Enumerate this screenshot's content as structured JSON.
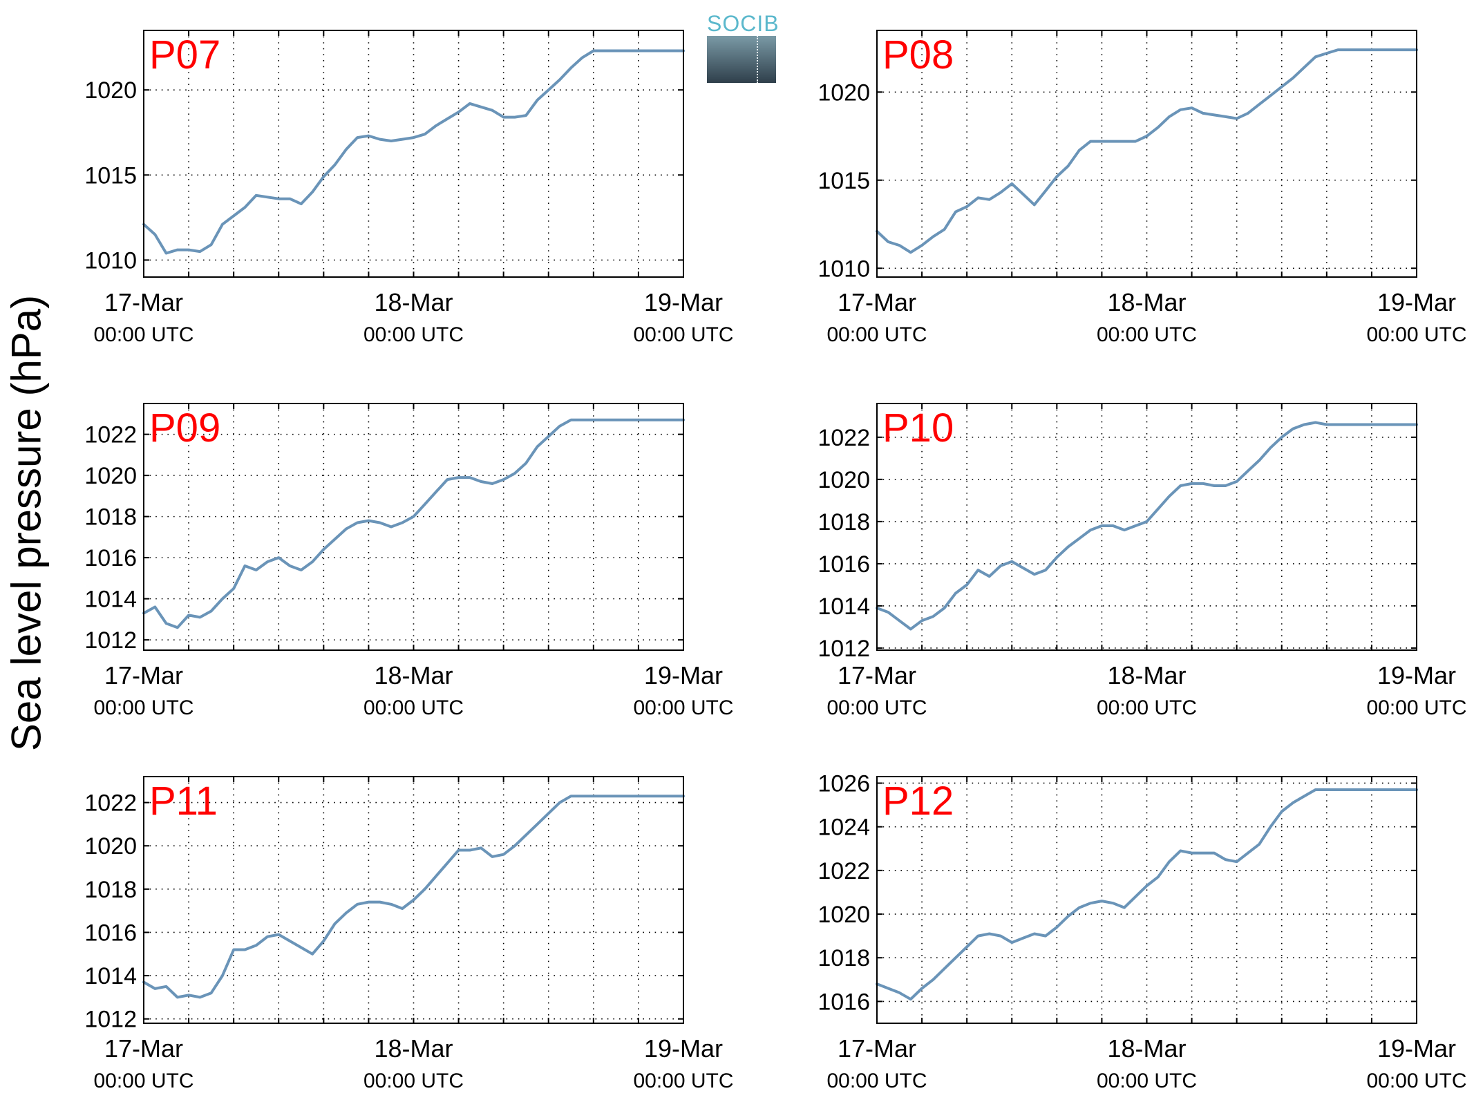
{
  "figure": {
    "ylabel": "Sea level pressure (hPa)",
    "logo_text": "SOCIB",
    "line_color": "#6a94b8",
    "label_color": "#ff0000"
  },
  "chart_data": [
    {
      "type": "line",
      "title": "P07",
      "x_ticks": [
        {
          "date": "17-Mar",
          "time": "00:00 UTC"
        },
        {
          "date": "18-Mar",
          "time": "00:00 UTC"
        },
        {
          "date": "19-Mar",
          "time": "00:00 UTC"
        }
      ],
      "xlim_hours": [
        0,
        48
      ],
      "ylim": [
        1009.0,
        1023.5
      ],
      "yticks": [
        1010,
        1015,
        1020
      ],
      "series": [
        {
          "x": [
            0,
            1,
            2,
            3,
            4,
            5,
            6,
            7,
            8,
            9,
            10,
            11,
            12,
            13,
            14,
            15,
            16,
            17,
            18,
            19,
            20,
            21,
            22,
            23,
            24,
            25,
            26,
            27,
            28,
            29,
            30,
            31,
            32,
            33,
            34,
            35,
            36,
            37,
            38,
            39,
            40,
            41,
            42,
            43,
            44,
            45,
            46,
            47,
            48
          ],
          "y": [
            1012.1,
            1011.5,
            1010.4,
            1010.6,
            1010.6,
            1010.5,
            1010.9,
            1012.1,
            1012.6,
            1013.1,
            1013.8,
            1013.7,
            1013.6,
            1013.6,
            1013.3,
            1014.0,
            1014.9,
            1015.6,
            1016.5,
            1017.2,
            1017.3,
            1017.1,
            1017.0,
            1017.1,
            1017.2,
            1017.4,
            1017.9,
            1018.3,
            1018.7,
            1019.2,
            1019.0,
            1018.8,
            1018.4,
            1018.4,
            1018.5,
            1019.4,
            1020.0,
            1020.6,
            1021.3,
            1021.9,
            1022.3,
            1022.3,
            1022.3,
            1022.3,
            1022.3,
            1022.3,
            1022.3,
            1022.3,
            1022.3
          ]
        }
      ]
    },
    {
      "type": "line",
      "title": "P08",
      "x_ticks": [
        {
          "date": "17-Mar",
          "time": "00:00 UTC"
        },
        {
          "date": "18-Mar",
          "time": "00:00 UTC"
        },
        {
          "date": "19-Mar",
          "time": "00:00 UTC"
        }
      ],
      "xlim_hours": [
        0,
        48
      ],
      "ylim": [
        1009.5,
        1023.5
      ],
      "yticks": [
        1010,
        1015,
        1020
      ],
      "series": [
        {
          "x": [
            0,
            1,
            2,
            3,
            4,
            5,
            6,
            7,
            8,
            9,
            10,
            11,
            12,
            13,
            14,
            15,
            16,
            17,
            18,
            19,
            20,
            21,
            22,
            23,
            24,
            25,
            26,
            27,
            28,
            29,
            30,
            31,
            32,
            33,
            34,
            35,
            36,
            37,
            38,
            39,
            40,
            41,
            42,
            43,
            44,
            45,
            46,
            47,
            48
          ],
          "y": [
            1012.1,
            1011.5,
            1011.3,
            1010.9,
            1011.3,
            1011.8,
            1012.2,
            1013.2,
            1013.5,
            1014.0,
            1013.9,
            1014.3,
            1014.8,
            1014.2,
            1013.6,
            1014.4,
            1015.2,
            1015.8,
            1016.7,
            1017.2,
            1017.2,
            1017.2,
            1017.2,
            1017.2,
            1017.5,
            1018.0,
            1018.6,
            1019.0,
            1019.1,
            1018.8,
            1018.7,
            1018.6,
            1018.5,
            1018.8,
            1019.3,
            1019.8,
            1020.3,
            1020.8,
            1021.4,
            1022.0,
            1022.2,
            1022.4,
            1022.4,
            1022.4,
            1022.4,
            1022.4,
            1022.4,
            1022.4,
            1022.4
          ]
        }
      ]
    },
    {
      "type": "line",
      "title": "P09",
      "x_ticks": [
        {
          "date": "17-Mar",
          "time": "00:00 UTC"
        },
        {
          "date": "18-Mar",
          "time": "00:00 UTC"
        },
        {
          "date": "19-Mar",
          "time": "00:00 UTC"
        }
      ],
      "xlim_hours": [
        0,
        48
      ],
      "ylim": [
        1011.5,
        1023.5
      ],
      "yticks": [
        1012,
        1014,
        1016,
        1018,
        1020,
        1022
      ],
      "series": [
        {
          "x": [
            0,
            1,
            2,
            3,
            4,
            5,
            6,
            7,
            8,
            9,
            10,
            11,
            12,
            13,
            14,
            15,
            16,
            17,
            18,
            19,
            20,
            21,
            22,
            23,
            24,
            25,
            26,
            27,
            28,
            29,
            30,
            31,
            32,
            33,
            34,
            35,
            36,
            37,
            38,
            39,
            40,
            41,
            42,
            43,
            44,
            45,
            46,
            47,
            48
          ],
          "y": [
            1013.3,
            1013.6,
            1012.8,
            1012.6,
            1013.2,
            1013.1,
            1013.4,
            1014.0,
            1014.5,
            1015.6,
            1015.4,
            1015.8,
            1016.0,
            1015.6,
            1015.4,
            1015.8,
            1016.4,
            1016.9,
            1017.4,
            1017.7,
            1017.8,
            1017.7,
            1017.5,
            1017.7,
            1018.0,
            1018.6,
            1019.2,
            1019.8,
            1019.9,
            1019.9,
            1019.7,
            1019.6,
            1019.8,
            1020.1,
            1020.6,
            1021.4,
            1021.9,
            1022.4,
            1022.7,
            1022.7,
            1022.7,
            1022.7,
            1022.7,
            1022.7,
            1022.7,
            1022.7,
            1022.7,
            1022.7,
            1022.7
          ]
        }
      ]
    },
    {
      "type": "line",
      "title": "P10",
      "x_ticks": [
        {
          "date": "17-Mar",
          "time": "00:00 UTC"
        },
        {
          "date": "18-Mar",
          "time": "00:00 UTC"
        },
        {
          "date": "19-Mar",
          "time": "00:00 UTC"
        }
      ],
      "xlim_hours": [
        0,
        48
      ],
      "ylim": [
        1011.9,
        1023.6
      ],
      "yticks": [
        1012,
        1014,
        1016,
        1018,
        1020,
        1022
      ],
      "series": [
        {
          "x": [
            0,
            1,
            2,
            3,
            4,
            5,
            6,
            7,
            8,
            9,
            10,
            11,
            12,
            13,
            14,
            15,
            16,
            17,
            18,
            19,
            20,
            21,
            22,
            23,
            24,
            25,
            26,
            27,
            28,
            29,
            30,
            31,
            32,
            33,
            34,
            35,
            36,
            37,
            38,
            39,
            40,
            41,
            42,
            43,
            44,
            45,
            46,
            47,
            48
          ],
          "y": [
            1013.9,
            1013.7,
            1013.3,
            1012.9,
            1013.3,
            1013.5,
            1013.9,
            1014.6,
            1015.0,
            1015.7,
            1015.4,
            1015.9,
            1016.1,
            1015.8,
            1015.5,
            1015.7,
            1016.3,
            1016.8,
            1017.2,
            1017.6,
            1017.8,
            1017.8,
            1017.6,
            1017.8,
            1018.0,
            1018.6,
            1019.2,
            1019.7,
            1019.8,
            1019.8,
            1019.7,
            1019.7,
            1019.9,
            1020.4,
            1020.9,
            1021.5,
            1022.0,
            1022.4,
            1022.6,
            1022.7,
            1022.6,
            1022.6,
            1022.6,
            1022.6,
            1022.6,
            1022.6,
            1022.6,
            1022.6,
            1022.6
          ]
        }
      ]
    },
    {
      "type": "line",
      "title": "P11",
      "x_ticks": [
        {
          "date": "17-Mar",
          "time": "00:00 UTC"
        },
        {
          "date": "18-Mar",
          "time": "00:00 UTC"
        },
        {
          "date": "19-Mar",
          "time": "00:00 UTC"
        }
      ],
      "xlim_hours": [
        0,
        48
      ],
      "ylim": [
        1011.8,
        1023.2
      ],
      "yticks": [
        1012,
        1014,
        1016,
        1018,
        1020,
        1022
      ],
      "series": [
        {
          "x": [
            0,
            1,
            2,
            3,
            4,
            5,
            6,
            7,
            8,
            9,
            10,
            11,
            12,
            13,
            14,
            15,
            16,
            17,
            18,
            19,
            20,
            21,
            22,
            23,
            24,
            25,
            26,
            27,
            28,
            29,
            30,
            31,
            32,
            33,
            34,
            35,
            36,
            37,
            38,
            39,
            40,
            41,
            42,
            43,
            44,
            45,
            46,
            47,
            48
          ],
          "y": [
            1013.7,
            1013.4,
            1013.5,
            1013.0,
            1013.1,
            1013.0,
            1013.2,
            1014.0,
            1015.2,
            1015.2,
            1015.4,
            1015.8,
            1015.9,
            1015.6,
            1015.3,
            1015.0,
            1015.6,
            1016.4,
            1016.9,
            1017.3,
            1017.4,
            1017.4,
            1017.3,
            1017.1,
            1017.5,
            1018.0,
            1018.6,
            1019.2,
            1019.8,
            1019.8,
            1019.9,
            1019.5,
            1019.6,
            1020.0,
            1020.5,
            1021.0,
            1021.5,
            1022.0,
            1022.3,
            1022.3,
            1022.3,
            1022.3,
            1022.3,
            1022.3,
            1022.3,
            1022.3,
            1022.3,
            1022.3,
            1022.3
          ]
        }
      ]
    },
    {
      "type": "line",
      "title": "P12",
      "x_ticks": [
        {
          "date": "17-Mar",
          "time": "00:00 UTC"
        },
        {
          "date": "18-Mar",
          "time": "00:00 UTC"
        },
        {
          "date": "19-Mar",
          "time": "00:00 UTC"
        }
      ],
      "xlim_hours": [
        0,
        48
      ],
      "ylim": [
        1015.0,
        1026.3
      ],
      "yticks": [
        1016,
        1018,
        1020,
        1022,
        1024,
        1026
      ],
      "series": [
        {
          "x": [
            0,
            1,
            2,
            3,
            4,
            5,
            6,
            7,
            8,
            9,
            10,
            11,
            12,
            13,
            14,
            15,
            16,
            17,
            18,
            19,
            20,
            21,
            22,
            23,
            24,
            25,
            26,
            27,
            28,
            29,
            30,
            31,
            32,
            33,
            34,
            35,
            36,
            37,
            38,
            39,
            40,
            41,
            42,
            43,
            44,
            45,
            46,
            47,
            48
          ],
          "y": [
            1016.8,
            1016.6,
            1016.4,
            1016.1,
            1016.6,
            1017.0,
            1017.5,
            1018.0,
            1018.5,
            1019.0,
            1019.1,
            1019.0,
            1018.7,
            1018.9,
            1019.1,
            1019.0,
            1019.4,
            1019.9,
            1020.3,
            1020.5,
            1020.6,
            1020.5,
            1020.3,
            1020.8,
            1021.3,
            1021.7,
            1022.4,
            1022.9,
            1022.8,
            1022.8,
            1022.8,
            1022.5,
            1022.4,
            1022.8,
            1023.2,
            1024.0,
            1024.7,
            1025.1,
            1025.4,
            1025.7,
            1025.7,
            1025.7,
            1025.7,
            1025.7,
            1025.7,
            1025.7,
            1025.7,
            1025.7,
            1025.7
          ]
        }
      ]
    }
  ]
}
